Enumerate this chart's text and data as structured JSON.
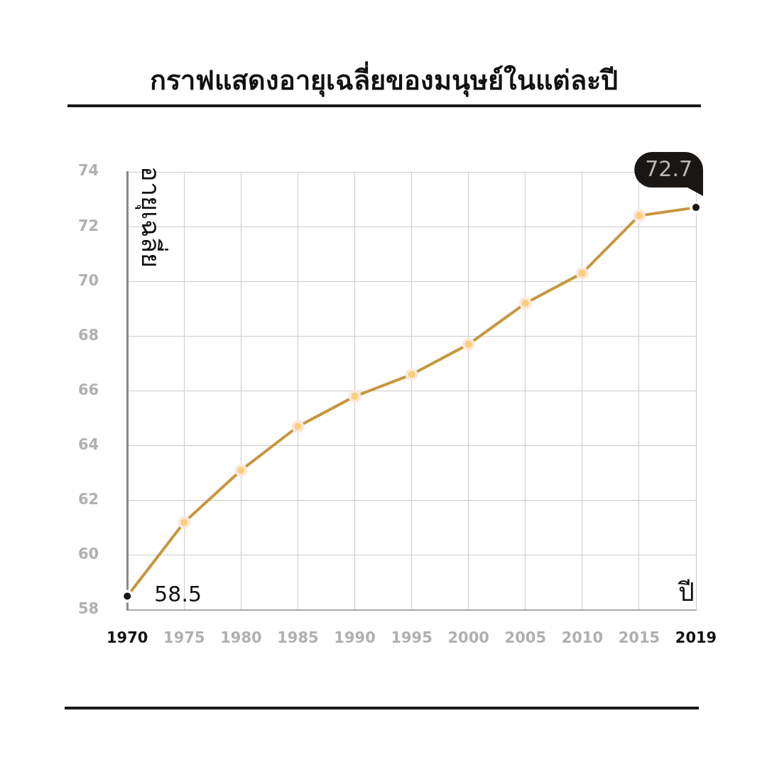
{
  "chart_data": {
    "type": "line",
    "title": "กราฟแสดงอายุเฉลี่ยของมนุษย์ในแต่ละปี",
    "xlabel": "ปี",
    "ylabel": "อายุเฉลี่ย",
    "categories": [
      "1970",
      "1975",
      "1980",
      "1985",
      "1990",
      "1995",
      "2000",
      "2005",
      "2010",
      "2015",
      "2019"
    ],
    "series": [
      {
        "color": "#c8963e",
        "colors": [
          "#1a1614",
          "#f9cf7a",
          "#f9cf7a",
          "#f9cf7a",
          "#f9cf7a",
          "#f9cf7a",
          "#f9cf7a",
          "#f9cf7a",
          "#f9cf7a",
          "#f9cf7a",
          "#1a1614"
        ],
        "values": [
          58.5,
          61.2,
          63.1,
          64.7,
          65.8,
          66.6,
          67.7,
          69.2,
          70.3,
          72.4,
          72.7
        ],
        "value_labels": [
          "58.5",
          null,
          null,
          null,
          null,
          null,
          null,
          null,
          null,
          null,
          "72.7"
        ]
      }
    ],
    "ylim": [
      58,
      74
    ],
    "yticks": [
      58,
      60,
      62,
      64,
      66,
      68,
      70,
      72,
      74
    ],
    "grid": true,
    "legend": false,
    "marker": "circle",
    "line_style": "solid"
  }
}
